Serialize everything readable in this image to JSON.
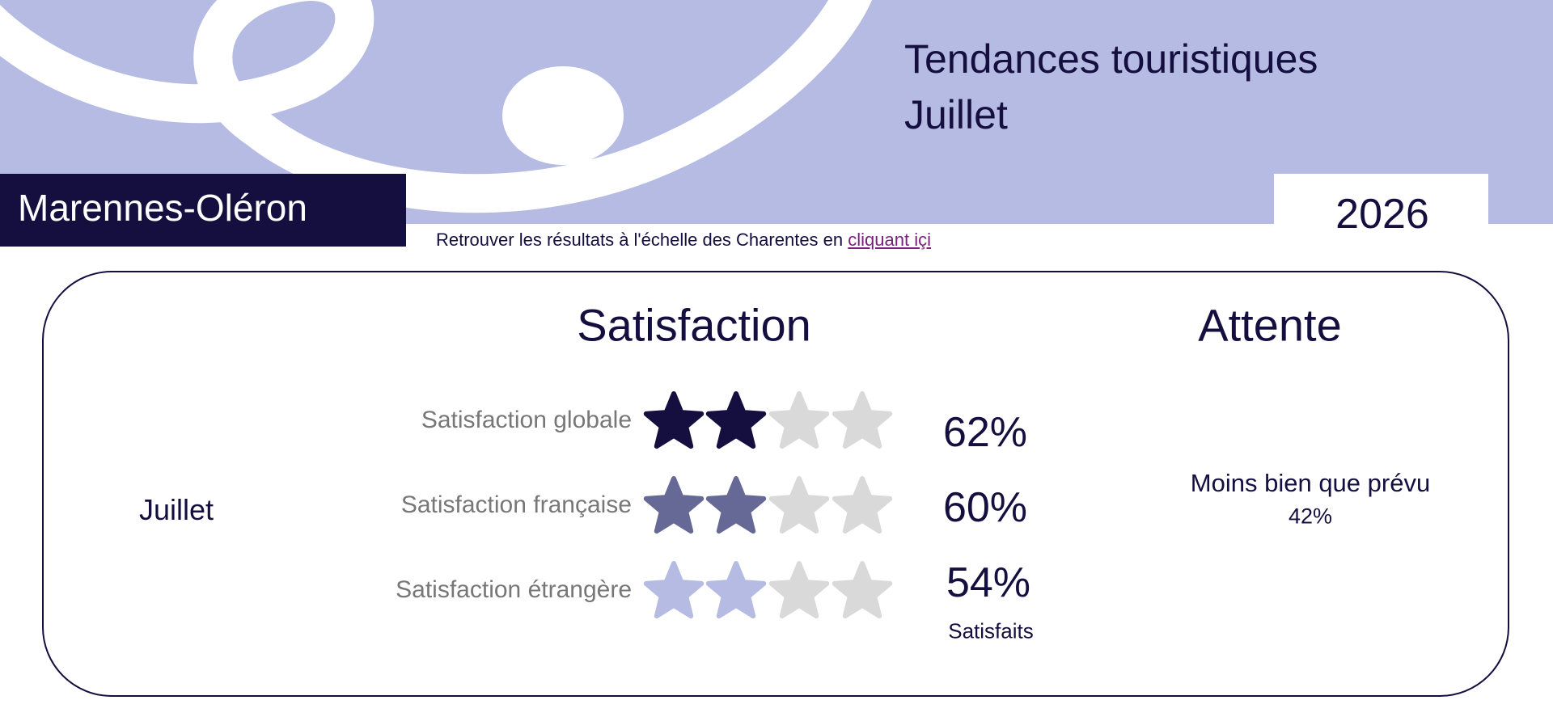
{
  "header": {
    "title_lines": [
      "Tendances touristiques",
      "Juillet"
    ],
    "region": "Marennes-Oléron",
    "year": "2026",
    "link_text": "Retrouver les résultats à l'échelle des Charentes en",
    "link_label": "cliquant içi"
  },
  "panel": {
    "month": "Juillet",
    "satisfaction": {
      "title": "Satisfaction",
      "rows": [
        {
          "label": "Satisfaction globale",
          "value": "62%"
        },
        {
          "label": "Satisfaction française",
          "value": "60%"
        },
        {
          "label": "Satisfaction étrangère",
          "value": "54%"
        }
      ],
      "footnote": "Satisfaits"
    },
    "attente": {
      "title": "Attente",
      "label": "Moins bien que prévu",
      "value": "42%"
    }
  }
}
